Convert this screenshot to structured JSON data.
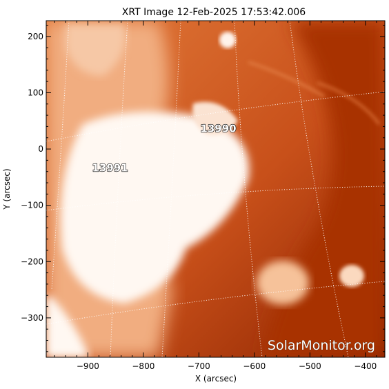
{
  "title": "XRT Image 12-Feb-2025 17:53:42.006",
  "x_axis": {
    "label": "X (arcsec)",
    "range": [
      -975,
      -365
    ],
    "ticks": [
      -900,
      -800,
      -700,
      -600,
      -500,
      -400
    ]
  },
  "y_axis": {
    "label": "Y (arcsec)",
    "range": [
      -370,
      228
    ],
    "ticks": [
      200,
      100,
      0,
      -100,
      -200,
      -300
    ]
  },
  "regions": [
    {
      "label": "13990",
      "x": -665,
      "y": 30
    },
    {
      "label": "13991",
      "x": -860,
      "y": -40
    }
  ],
  "watermark": "SolarMonitor.org",
  "colors": {
    "dark": "#a52d00",
    "mid": "#d9601c",
    "light": "#f2b38a",
    "white": "#fff9f4"
  }
}
